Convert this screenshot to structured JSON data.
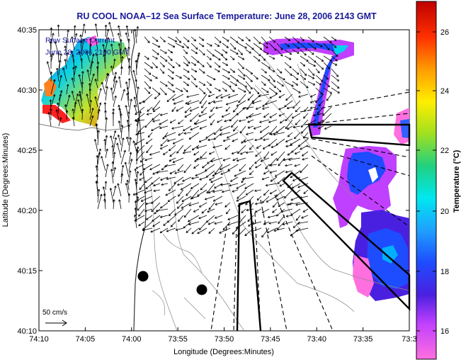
{
  "title": "RU COOL  NOAA–12  Sea Surface Temperature:  June 28, 2006 2143 GMT",
  "inset_label_1": "Raw Surface Current",
  "inset_label_2": "June 28, 2006 2100 GMT",
  "scale_label": "50 cm/s",
  "xlabel": "Longitude (Degrees:Minutes)",
  "ylabel": "Latitude (Degrees:Minutes)",
  "colorbar_label": "Temperature (°C)",
  "x_ticks": [
    "74:10",
    "74:05",
    "74:00",
    "73:55",
    "73:50",
    "73:45",
    "73:40",
    "73:35",
    "73:3"
  ],
  "y_ticks": [
    "40:35",
    "40:30",
    "40:25",
    "40:20",
    "40:15",
    "40:10"
  ],
  "colorbar_ticks": [
    "26",
    "24",
    "22",
    "20",
    "18",
    "16"
  ],
  "colors": {
    "title": "#1a1a9a",
    "inset_text": "#1a1a9a"
  }
}
